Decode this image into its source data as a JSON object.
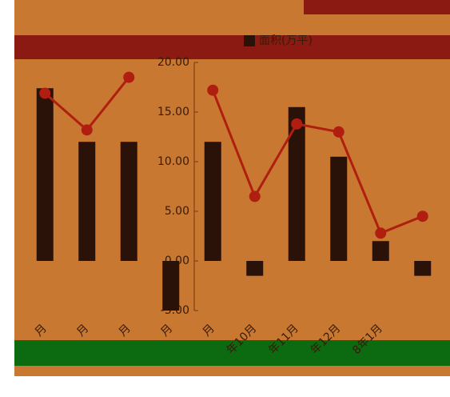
{
  "chart_data": {
    "type": "combo",
    "legend": "面积(万平)",
    "categories": [
      "月",
      "月",
      "月",
      "月",
      "月",
      "年10月",
      "年11月",
      "年12月",
      "8年1月",
      null
    ],
    "series": [
      {
        "kind": "bar",
        "color": "#2a1208",
        "values": [
          17.4,
          12.0,
          12.0,
          -5.0,
          12.0,
          -1.5,
          15.5,
          10.5,
          2.0,
          -1.5
        ]
      },
      {
        "kind": "line",
        "color": "#b01e10",
        "values": [
          16.9,
          13.2,
          18.5,
          null,
          17.2,
          6.5,
          13.8,
          13.0,
          2.8,
          4.5
        ]
      }
    ],
    "ylim": [
      -5,
      20
    ],
    "yticks": [
      {
        "value": 20,
        "label": "20.00"
      },
      {
        "value": 15,
        "label": "15.00"
      },
      {
        "value": 10,
        "label": "10.00"
      },
      {
        "value": 5,
        "label": "5.00"
      },
      {
        "value": 0,
        "label": "0.00"
      },
      {
        "value": -5,
        "label": "-5.00"
      }
    ]
  }
}
